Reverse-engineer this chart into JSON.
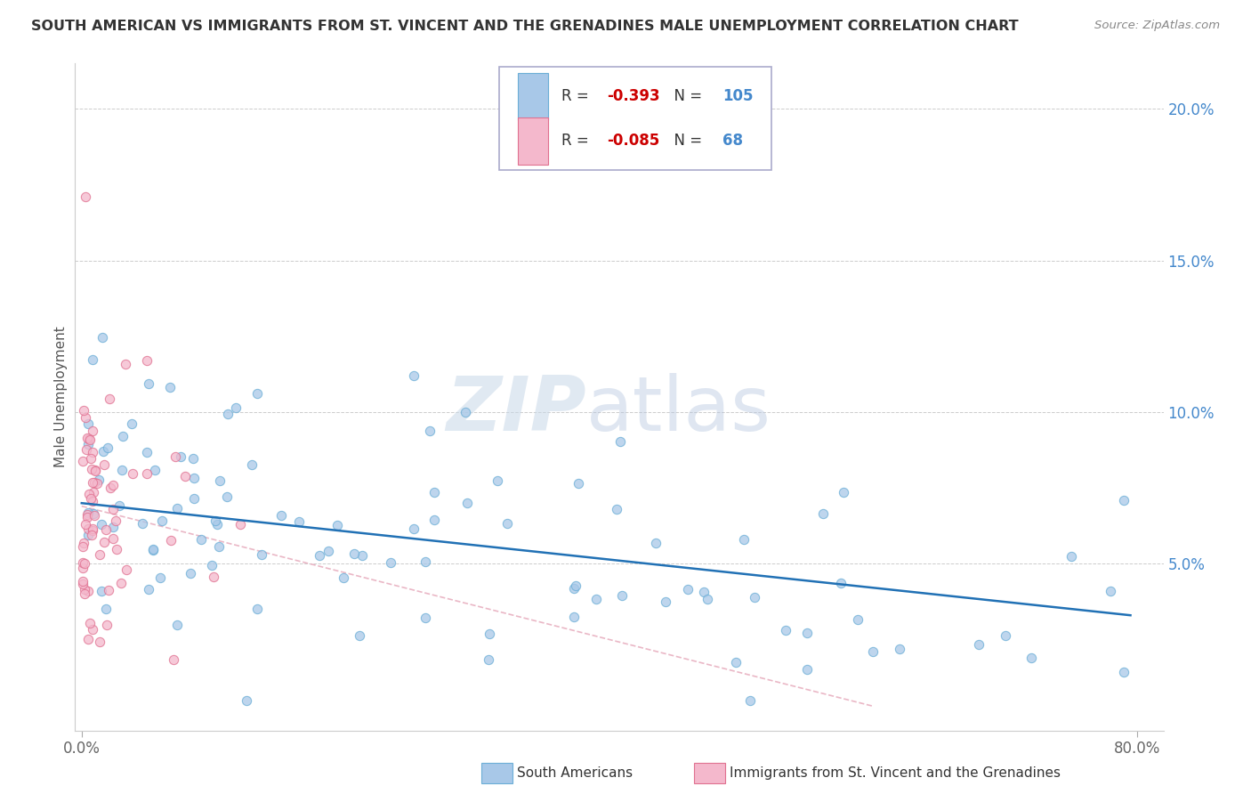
{
  "title": "SOUTH AMERICAN VS IMMIGRANTS FROM ST. VINCENT AND THE GRENADINES MALE UNEMPLOYMENT CORRELATION CHART",
  "source": "Source: ZipAtlas.com",
  "ylabel": "Male Unemployment",
  "watermark_zip": "ZIP",
  "watermark_atlas": "atlas",
  "xlim": [
    -0.005,
    0.82
  ],
  "ylim": [
    -0.005,
    0.215
  ],
  "xtick_positions": [
    0.0,
    0.8
  ],
  "xtick_labels": [
    "0.0%",
    "80.0%"
  ],
  "ytick_positions": [
    0.05,
    0.1,
    0.15,
    0.2
  ],
  "ytick_labels": [
    "5.0%",
    "10.0%",
    "15.0%",
    "20.0%"
  ],
  "legend1_r": "-0.393",
  "legend1_n": "105",
  "legend2_r": "-0.085",
  "legend2_n": "68",
  "blue_color": "#a8c8e8",
  "blue_edge": "#6baed6",
  "pink_color": "#f4b8cc",
  "pink_edge": "#e07090",
  "line_blue_color": "#2171b5",
  "line_pink_color": "#e8b0c0",
  "grid_color": "#cccccc",
  "tick_color_x": "#666666",
  "tick_color_y": "#4488cc",
  "title_color": "#333333",
  "source_color": "#888888",
  "ylabel_color": "#555555",
  "legend_r_color": "#cc0000",
  "legend_n_color": "#4488cc",
  "watermark_color": "#d8e8f0",
  "dot_size": 55,
  "dot_alpha": 0.75
}
